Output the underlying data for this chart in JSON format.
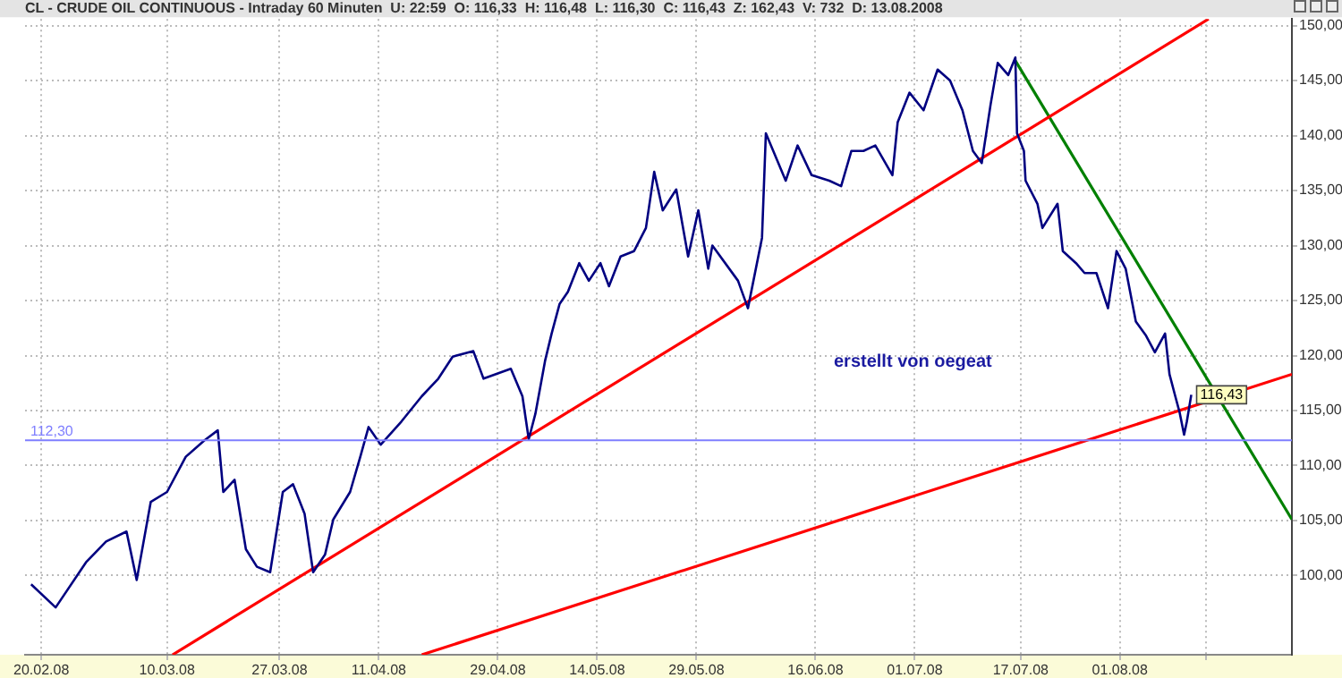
{
  "chart_data": {
    "type": "line",
    "title": "CL - CRUDE OIL CONTINUOUS - Intraday 60 Minuten  U: 22:59  O: 116,33  H: 116,48  L: 116,30  C: 116,43  Z: 162,43  V: 732  D: 13.08.2008",
    "annotations": [
      "erstellt von oegeat"
    ],
    "xlim": [
      "2008-02-17T13:00",
      "2008-08-27"
    ],
    "xticks": [
      {
        "value": "2008-02-20",
        "label": "20.02.08"
      },
      {
        "value": "2008-03-10",
        "label": "10.03.08"
      },
      {
        "value": "2008-03-27",
        "label": "27.03.08"
      },
      {
        "value": "2008-04-11",
        "label": "11.04.08"
      },
      {
        "value": "2008-04-29",
        "label": "29.04.08"
      },
      {
        "value": "2008-05-14",
        "label": "14.05.08"
      },
      {
        "value": "2008-05-29",
        "label": "29.05.08"
      },
      {
        "value": "2008-06-16",
        "label": "16.06.08"
      },
      {
        "value": "2008-07-01",
        "label": "01.07.08"
      },
      {
        "value": "2008-07-17",
        "label": "17.07.08"
      },
      {
        "value": "2008-08-01",
        "label": "01.08.08"
      },
      {
        "value": "2008-08-14",
        "label": null
      }
    ],
    "ylim": [
      92.8,
      150.6
    ],
    "yticks": [
      {
        "value": 100,
        "label": "100,00"
      },
      {
        "value": 105,
        "label": "105,00"
      },
      {
        "value": 110,
        "label": "110,00"
      },
      {
        "value": 115,
        "label": "115,00"
      },
      {
        "value": 120,
        "label": "120,00"
      },
      {
        "value": 125,
        "label": "125,00"
      },
      {
        "value": 130,
        "label": "130,00"
      },
      {
        "value": 135,
        "label": "135,00"
      },
      {
        "value": 140,
        "label": "140,00"
      },
      {
        "value": 145,
        "label": "145,00"
      },
      {
        "value": 150,
        "label": "150,00"
      }
    ],
    "grid": true,
    "legend": false,
    "marker": "none",
    "line_style": "solid",
    "ref_lines": [
      {
        "axis": "y",
        "value": 112.3,
        "label": "112,30",
        "color": "#7f7fff"
      }
    ],
    "series": [
      {
        "color": "#000080",
        "x": [
          "2008-02-18T11:00",
          "2008-02-22T04:00",
          "2008-02-26T18:00",
          "2008-02-29T19:00",
          "2008-03-03T21:00",
          "2008-03-05T10:00",
          "2008-03-07T13:00",
          "2008-03-10T00:00",
          "2008-03-12T20:00",
          "2008-03-15T16:00",
          "2008-03-17T16:00",
          "2008-03-18T12:00",
          "2008-03-20T05:00",
          "2008-03-21T22:00",
          "2008-03-23T14:00",
          "2008-03-25T14:00",
          "2008-03-27T12:00",
          "2008-03-29T01:00",
          "2008-03-30T19:00",
          "2008-04-01T02:00",
          "2008-04-02T21:00",
          "2008-04-04T03:00",
          "2008-04-06T16:00",
          "2008-04-08T05:00",
          "2008-04-09T11:00",
          "2008-04-11T07:00",
          "2008-04-14T10:00",
          "2008-04-17T12:00",
          "2008-04-20T00:00",
          "2008-04-22T04:00",
          "2008-04-25T07:00",
          "2008-04-26T20:00",
          "2008-04-30T23:00",
          "2008-05-02T17:00",
          "2008-05-03T16:00",
          "2008-05-04T16:00",
          "2008-05-06T03:00",
          "2008-05-07T03:00",
          "2008-05-08T08:00",
          "2008-05-09T14:00",
          "2008-05-11T07:00",
          "2008-05-12T18:00",
          "2008-05-14T12:00",
          "2008-05-15T19:00",
          "2008-05-17T13:00",
          "2008-05-19T14:00",
          "2008-05-21T09:00",
          "2008-05-22T15:00",
          "2008-05-23T22:00",
          "2008-05-25T23:00",
          "2008-05-27T18:00",
          "2008-05-29T07:00",
          "2008-05-30T19:00",
          "2008-05-31T10:00",
          "2008-06-04T07:00",
          "2008-06-05T19:00",
          "2008-06-07T22:00",
          "2008-06-08T12:00",
          "2008-06-11T12:00",
          "2008-06-13T07:00",
          "2008-06-15T10:00",
          "2008-06-18T02:00",
          "2008-06-19T21:00",
          "2008-06-21T10:00",
          "2008-06-23T06:00",
          "2008-06-25T01:00",
          "2008-06-27T15:00",
          "2008-06-28T10:00",
          "2008-06-30T05:00",
          "2008-07-02T08:00",
          "2008-07-04T11:00",
          "2008-07-06T08:00",
          "2008-07-08T05:00",
          "2008-07-09T19:00",
          "2008-07-11T03:00",
          "2008-07-12T11:00",
          "2008-07-13T13:00",
          "2008-07-15T03:00",
          "2008-07-16T05:00",
          "2008-07-16T11:00",
          "2008-07-17T12:00",
          "2008-07-17T18:00",
          "2008-07-19T13:00",
          "2008-07-20T07:00",
          "2008-07-22T14:00",
          "2008-07-23T09:00",
          "2008-07-25T09:00",
          "2008-07-26T16:00",
          "2008-07-28T11:00",
          "2008-07-30T05:00",
          "2008-07-31T12:00",
          "2008-08-01T21:00",
          "2008-08-03T10:00",
          "2008-08-04T23:00",
          "2008-08-06T07:00",
          "2008-08-07T20:00",
          "2008-08-08T12:00",
          "2008-08-09T09:00",
          "2008-08-10T01:00",
          "2008-08-10T17:00",
          "2008-08-11T03:00",
          "2008-08-11T19:00"
        ],
        "values": [
          99.2,
          97.1,
          101.2,
          103.1,
          104,
          99.6,
          106.7,
          107.6,
          110.8,
          112.3,
          113.2,
          107.6,
          108.7,
          102.4,
          100.8,
          100.3,
          107.6,
          108.3,
          105.6,
          100.3,
          101.9,
          105.1,
          107.6,
          110.8,
          113.5,
          111.9,
          114,
          116.3,
          117.9,
          119.9,
          120.4,
          117.9,
          118.8,
          116.3,
          112.4,
          114.7,
          119.5,
          122,
          124.7,
          125.8,
          128.4,
          126.8,
          128.4,
          126.3,
          129,
          129.5,
          131.6,
          136.7,
          133.2,
          135.1,
          129,
          133.2,
          127.9,
          130,
          126.8,
          124.3,
          130.7,
          140.2,
          135.9,
          139.1,
          136.4,
          135.9,
          135.4,
          138.6,
          138.6,
          139.1,
          136.4,
          141.2,
          143.9,
          142.3,
          146,
          145,
          142.3,
          138.6,
          137.5,
          142.8,
          146.6,
          145.5,
          147.1,
          140.2,
          138.6,
          135.9,
          133.8,
          131.6,
          133.8,
          129.5,
          128.4,
          127.5,
          127.5,
          124.3,
          129.5,
          127.9,
          123.1,
          121.8,
          120.3,
          122,
          118.3,
          116.3,
          114.8,
          112.8,
          114,
          116.43
        ],
        "value_labels": [
          null,
          null,
          null,
          null,
          null,
          null,
          null,
          null,
          null,
          null,
          null,
          null,
          null,
          null,
          null,
          null,
          null,
          null,
          null,
          null,
          null,
          null,
          null,
          null,
          null,
          null,
          null,
          null,
          null,
          null,
          null,
          null,
          null,
          null,
          null,
          null,
          null,
          null,
          null,
          null,
          null,
          null,
          null,
          null,
          null,
          null,
          null,
          null,
          null,
          null,
          null,
          null,
          null,
          null,
          null,
          null,
          null,
          null,
          null,
          null,
          null,
          null,
          null,
          null,
          null,
          null,
          null,
          null,
          null,
          null,
          null,
          null,
          null,
          null,
          null,
          null,
          null,
          null,
          null,
          null,
          null,
          null,
          null,
          null,
          null,
          null,
          null,
          null,
          null,
          null,
          null,
          null,
          null,
          null,
          null,
          null,
          null,
          null,
          null,
          null,
          null,
          "116,43"
        ]
      },
      {
        "color": "#ff0000",
        "x": [
          "2008-03-10T20:00",
          "2008-08-14T10:00"
        ],
        "values": [
          92.8,
          150.6
        ]
      },
      {
        "color": "#ff0000",
        "x": [
          "2008-04-17T12:00",
          "2008-08-27"
        ],
        "values": [
          92.8,
          118.3
        ]
      },
      {
        "color": "#008000",
        "x": [
          "2008-07-16T05:00",
          "2008-08-27"
        ],
        "values": [
          146.8,
          105.1
        ]
      }
    ]
  }
}
